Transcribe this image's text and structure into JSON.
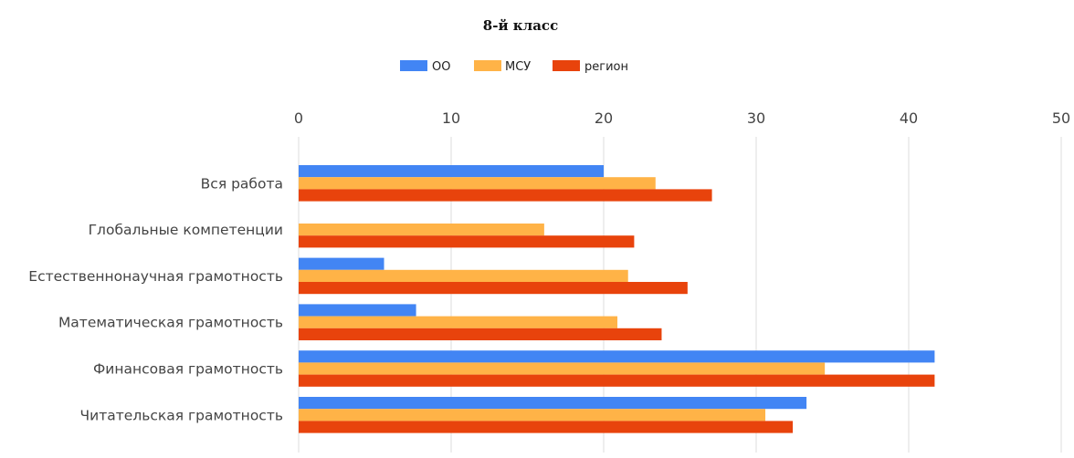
{
  "chart_data": {
    "type": "bar",
    "orientation": "horizontal",
    "title": "8-й класс",
    "xlabel": "",
    "ylabel": "",
    "xlim": [
      0,
      50
    ],
    "ticks": [
      0,
      10,
      20,
      30,
      40,
      50
    ],
    "grid": true,
    "legend_position": "top",
    "categories": [
      "Вся работа",
      "Глобальные компетенции",
      "Естественнонаучная грамотность",
      "Математическая грамотность",
      "Финансовая грамотность",
      "Читательская грамотность"
    ],
    "series": [
      {
        "name": "ОО",
        "color": "#4285f4",
        "values": [
          20.0,
          null,
          5.6,
          7.7,
          41.7,
          33.3
        ]
      },
      {
        "name": "МСУ",
        "color": "#ffb347",
        "values": [
          23.4,
          16.1,
          21.6,
          20.9,
          34.5,
          30.6
        ]
      },
      {
        "name": "регион",
        "color": "#e8430c",
        "values": [
          27.1,
          22.0,
          25.5,
          23.8,
          41.7,
          32.4
        ]
      }
    ]
  }
}
